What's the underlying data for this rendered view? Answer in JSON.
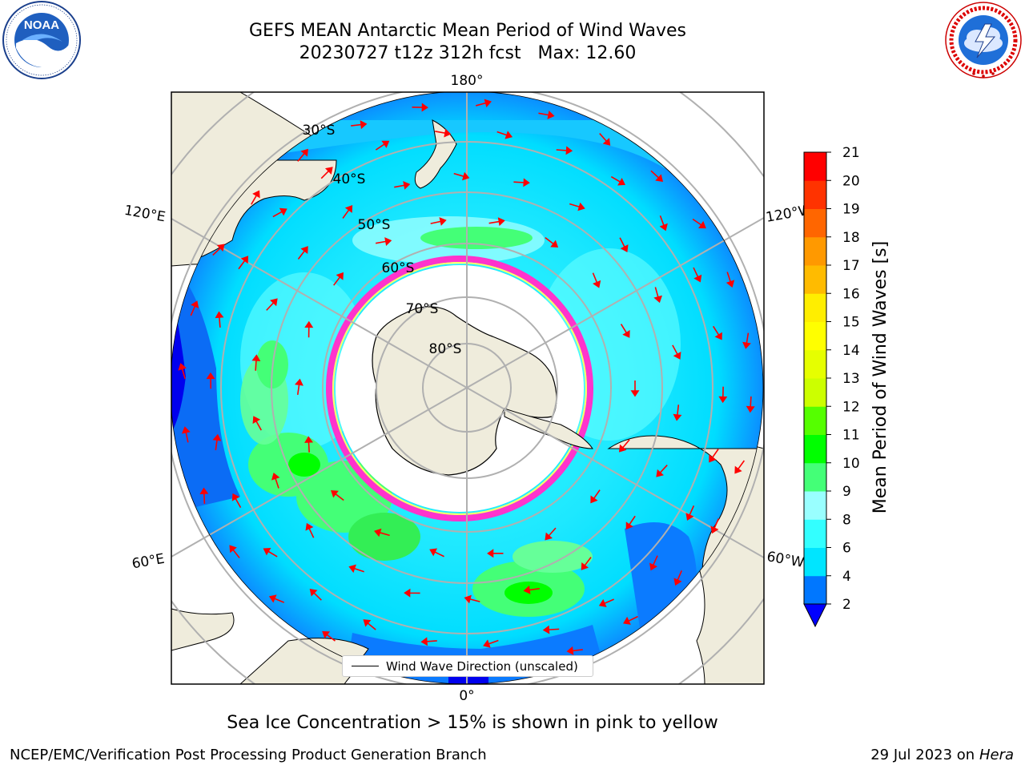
{
  "title": {
    "line1": "GEFS MEAN Antarctic Mean Period of Wind Waves",
    "line2": "20230727 t12z 312h fcst   Max: 12.60"
  },
  "logos": {
    "left": {
      "icon": "noaa-logo",
      "text": "NOAA",
      "ring_text": "NATIONAL OCEANIC AND ATMOSPHERIC ADMINISTRATION · U.S. DEPARTMENT OF COMMERCE"
    },
    "right": {
      "icon": "national-weather-service-logo",
      "ring_text": "NATIONAL WEATHER SERVICE"
    }
  },
  "map": {
    "projection": "south polar stereographic",
    "longitude_labels": {
      "top": "180°",
      "bottom": "0°",
      "upper_left": "120°E",
      "upper_right": "120°W",
      "lower_left": "60°E",
      "lower_right": "60°W"
    },
    "latitude_labels": [
      "30°S",
      "40°S",
      "50°S",
      "60°S",
      "70°S",
      "80°S"
    ],
    "legend": {
      "label": "Wind Wave Direction (unscaled)"
    },
    "colors": {
      "land": "#efecdc",
      "ice_free_interior": "#ffffff",
      "graticule": "#b0b0b0",
      "arrow": "#ff0000",
      "sea_ice_edge": [
        "#ff33cc",
        "#ffff66"
      ]
    }
  },
  "colorbar": {
    "label": "Mean Period of Wind Waves [s]",
    "ticks": [
      "2",
      "4",
      "6",
      "8",
      "9",
      "10",
      "11",
      "12",
      "13",
      "14",
      "15",
      "16",
      "17",
      "18",
      "19",
      "20",
      "21"
    ],
    "bins": [
      {
        "from": 2,
        "to": 4,
        "color": "#0077ff"
      },
      {
        "from": 4,
        "to": 6,
        "color": "#00e5ff"
      },
      {
        "from": 6,
        "to": 8,
        "color": "#33ffff"
      },
      {
        "from": 8,
        "to": 9,
        "color": "#99ffff"
      },
      {
        "from": 9,
        "to": 10,
        "color": "#44ff77"
      },
      {
        "from": 10,
        "to": 11,
        "color": "#00ff00"
      },
      {
        "from": 11,
        "to": 12,
        "color": "#55ff00"
      },
      {
        "from": 12,
        "to": 13,
        "color": "#ccff00"
      },
      {
        "from": 13,
        "to": 14,
        "color": "#e6ff00"
      },
      {
        "from": 14,
        "to": 15,
        "color": "#ffff00"
      },
      {
        "from": 15,
        "to": 16,
        "color": "#ffee00"
      },
      {
        "from": 16,
        "to": 17,
        "color": "#ffbb00"
      },
      {
        "from": 17,
        "to": 18,
        "color": "#ff9900"
      },
      {
        "from": 18,
        "to": 19,
        "color": "#ff6600"
      },
      {
        "from": 19,
        "to": 20,
        "color": "#ff3300"
      },
      {
        "from": 20,
        "to": 21,
        "color": "#ff0000"
      }
    ],
    "under_color": "#0000ff"
  },
  "ice_note": "Sea Ice Concentration > 15% is shown in pink to yellow",
  "footer": {
    "left": "NCEP/EMC/Verification Post Processing Product Generation Branch",
    "right_date": "29 Jul 2023 on",
    "right_host": "Hera"
  }
}
